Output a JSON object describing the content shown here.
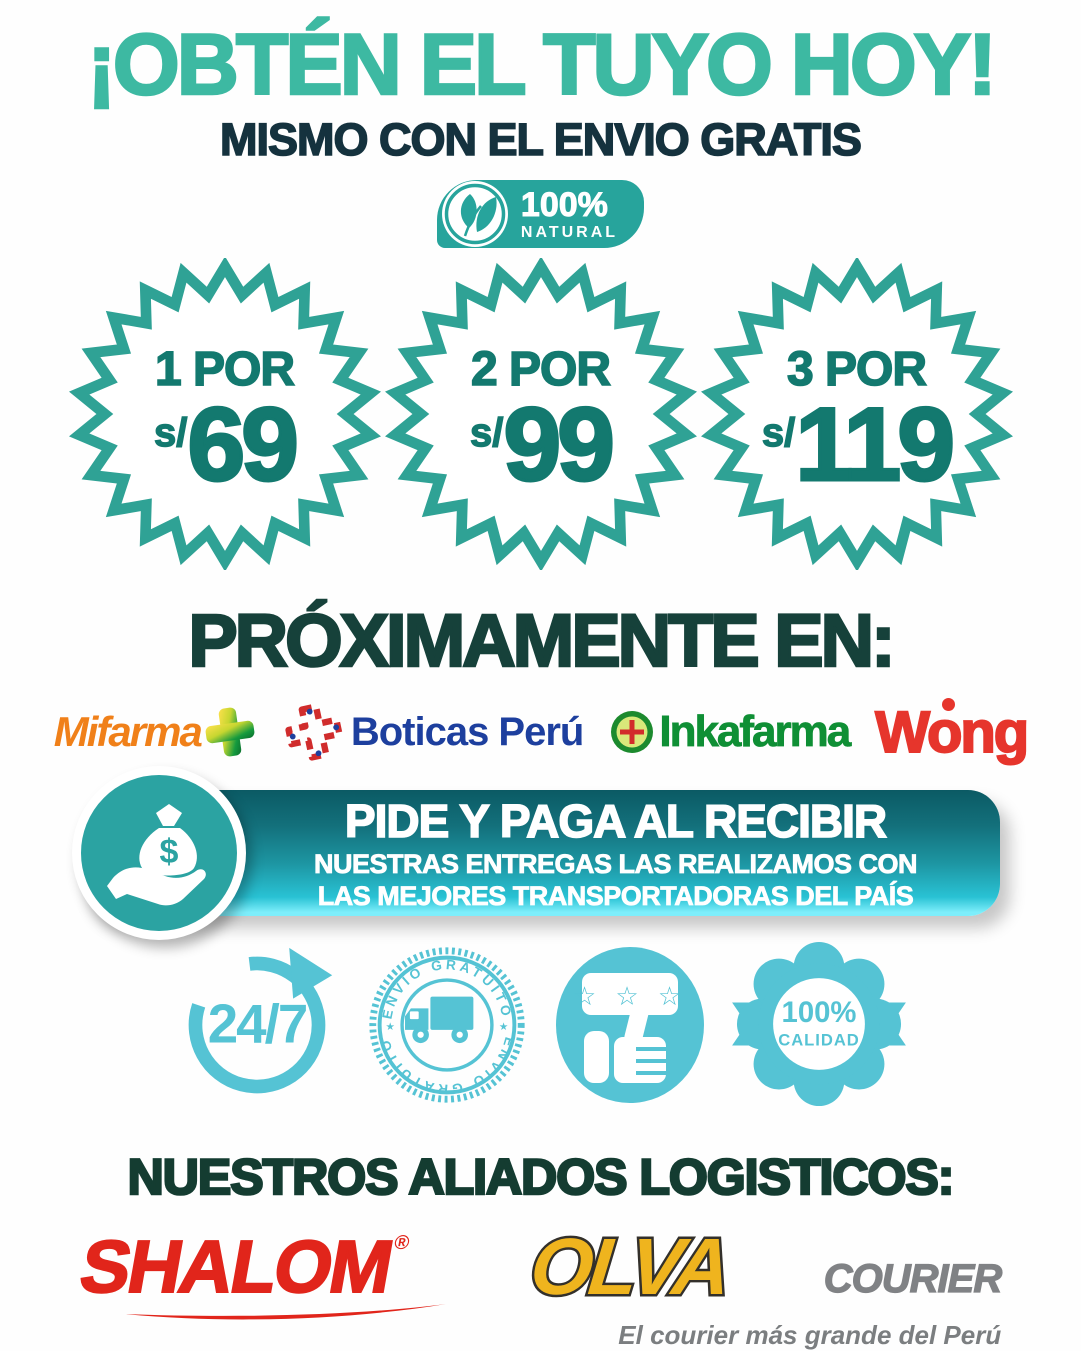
{
  "promo": {
    "headline": "¡OBTÉN EL TUYO HOY!",
    "subheadline": "MISMO CON EL ENVIO GRATIS"
  },
  "natural_badge": {
    "percent": "100%",
    "label": "NATURAL"
  },
  "price_badges": [
    {
      "qty_label": "1 POR",
      "currency": "s/",
      "price": "69"
    },
    {
      "qty_label": "2 POR",
      "currency": "s/",
      "price": "99"
    },
    {
      "qty_label": "3 POR",
      "currency": "s/",
      "price": "119"
    }
  ],
  "coming_soon": {
    "title": "PRÓXIMAMENTE EN:",
    "partners": {
      "mifarma": "Mifarma",
      "boticas": "Boticas Perú",
      "inkafarma": "Inkafarma",
      "wong": "Wong"
    }
  },
  "cod_banner": {
    "title": "PIDE Y PAGA AL RECIBIR",
    "line1": "NUESTRAS ENTREGAS LAS REALIZAMOS CON",
    "line2": "LAS MEJORES TRANSPORTADORAS DEL PAÍS",
    "dollar": "$"
  },
  "features": {
    "availability": "24/7",
    "stamp_text": "ENVIO GRATUITO",
    "star": "★",
    "review_stars": "☆ ☆ ☆",
    "quality_percent": "100%",
    "quality_label": "CALIDAD"
  },
  "logistics": {
    "title": "NUESTROS ALIADOS LOGISTICOS:",
    "shalom": {
      "name": "SHALOM",
      "reg": "®"
    },
    "olva": {
      "name": "OLVA",
      "suffix": "COURIER",
      "tagline": "El courier más grande del Perú"
    }
  },
  "colors": {
    "teal_headline": "#3db9a2",
    "dark_navy": "#15323e",
    "dark_green": "#16413a",
    "natural_teal": "#27a49c",
    "badge_outline": "#2fa295",
    "badge_text": "#13796f",
    "banner_top": "#0b5a64",
    "banner_bottom": "#7deefb",
    "banner_circle": "#2ba3a2",
    "icon_blue": "#55c3d4",
    "mifarma_orange": "#f08019",
    "boticas_blue": "#1d3f9e",
    "boticas_red": "#d02c2c",
    "inkafarma_green": "#0f8f35",
    "wong_red": "#e6352c",
    "shalom_red": "#e1251b",
    "olva_yellow": "#efb41e",
    "olva_gray": "#808285"
  }
}
